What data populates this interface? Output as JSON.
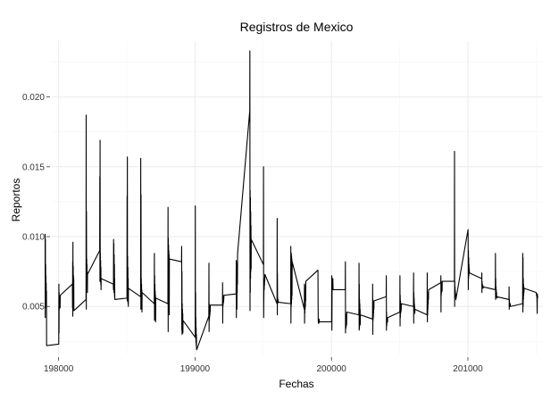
{
  "chart_data": {
    "type": "line",
    "title": "Registros de Mexico",
    "xlabel": "Fechas",
    "ylabel": "Reportos",
    "xlim": [
      197950,
      201550
    ],
    "ylim": [
      0.0015,
      0.024
    ],
    "x_ticks": [
      198000,
      199000,
      200000,
      201000
    ],
    "x_tick_labels": [
      "198000",
      "199000",
      "200000",
      "201000"
    ],
    "x_minor_ticks": [
      198500,
      199500,
      200500,
      201500
    ],
    "y_ticks": [
      0.005,
      0.01,
      0.015,
      0.02
    ],
    "y_tick_labels": [
      "0.005",
      "0.010",
      "0.015",
      "0.020"
    ],
    "y_minor_ticks": [
      0.0025,
      0.0075,
      0.0125,
      0.0175,
      0.0225
    ],
    "grid": true,
    "line_color": "#000000",
    "series": [
      {
        "x": [
          197901,
          197902,
          197903,
          197904,
          197905,
          197906,
          197907,
          197908,
          197909,
          197910,
          197911,
          197912,
          198001,
          198002,
          198003,
          198004,
          198005,
          198006,
          198007,
          198008,
          198009,
          198010,
          198011,
          198012,
          198101,
          198102,
          198103,
          198104,
          198105,
          198106,
          198107,
          198108,
          198109,
          198110,
          198111,
          198112,
          198201,
          198202,
          198203,
          198204,
          198205,
          198206,
          198207,
          198208,
          198209,
          198210,
          198211,
          198212,
          198301,
          198302,
          198303,
          198304,
          198305,
          198306,
          198307,
          198308,
          198309,
          198310,
          198311,
          198312,
          198401,
          198402,
          198403,
          198404,
          198405,
          198406,
          198407,
          198408,
          198409,
          198410,
          198411,
          198412,
          198501,
          198502,
          198503,
          198504,
          198505,
          198506,
          198507,
          198508,
          198509,
          198510,
          198511,
          198512,
          198601,
          198602,
          198603,
          198604,
          198605,
          198606,
          198607,
          198608,
          198609,
          198610,
          198611,
          198612,
          198701,
          198702,
          198703,
          198704,
          198705,
          198706,
          198707,
          198708,
          198709,
          198710,
          198711,
          198712,
          198801,
          198802,
          198803,
          198804,
          198805,
          198806,
          198807,
          198808,
          198809,
          198810,
          198811,
          198812,
          198901,
          198902,
          198903,
          198904,
          198905,
          198906,
          198907,
          198908,
          198909,
          198910,
          198911,
          198912,
          199001,
          199002,
          199003,
          199004,
          199005,
          199006,
          199007,
          199008,
          199009,
          199010,
          199011,
          199012,
          199101,
          199102,
          199103,
          199104,
          199105,
          199106,
          199107,
          199108,
          199109,
          199110,
          199111,
          199112,
          199201,
          199202,
          199203,
          199204,
          199205,
          199206,
          199207,
          199208,
          199209,
          199210,
          199211,
          199212,
          199301,
          199302,
          199303,
          199304,
          199305,
          199306,
          199307,
          199308,
          199309,
          199310,
          199311,
          199312,
          199401,
          199402,
          199403,
          199404,
          199405,
          199406,
          199407,
          199408,
          199409,
          199410,
          199411,
          199412,
          199501,
          199502,
          199503,
          199504,
          199505,
          199506,
          199507,
          199508,
          199509,
          199510,
          199511,
          199512,
          199601,
          199602,
          199603,
          199604,
          199605,
          199606,
          199607,
          199608,
          199609,
          199610,
          199611,
          199612,
          199701,
          199702,
          199703,
          199704,
          199705,
          199706,
          199707,
          199708,
          199709,
          199710,
          199711,
          199712,
          199801,
          199802,
          199803,
          199804,
          199805,
          199806,
          199807,
          199808,
          199809,
          199810,
          199811,
          199812,
          199901,
          199902,
          199903,
          199904,
          199905,
          199906,
          199907,
          199908,
          199909,
          199910,
          199911,
          199912,
          200001,
          200002,
          200003,
          200004,
          200005,
          200006,
          200007,
          200008,
          200009,
          200010,
          200011,
          200012,
          200101,
          200102,
          200103,
          200104,
          200105,
          200106,
          200107,
          200108,
          200109,
          200110,
          200111,
          200112,
          200201,
          200202,
          200203,
          200204,
          200205,
          200206,
          200207,
          200208,
          200209,
          200210,
          200211,
          200212,
          200301,
          200302,
          200303,
          200304,
          200305,
          200306,
          200307,
          200308,
          200309,
          200310,
          200311,
          200312,
          200401,
          200402,
          200403,
          200404,
          200405,
          200406,
          200407,
          200408,
          200409,
          200410,
          200411,
          200412,
          200501,
          200502,
          200503,
          200504,
          200505,
          200506,
          200507,
          200508,
          200509,
          200510,
          200511,
          200512,
          200601,
          200602,
          200603,
          200604,
          200605,
          200606,
          200607,
          200608,
          200609,
          200610,
          200611,
          200612,
          200701,
          200702,
          200703,
          200704,
          200705,
          200706,
          200707,
          200708,
          200709,
          200710,
          200711,
          200712,
          200801,
          200802,
          200803,
          200804,
          200805,
          200806,
          200807,
          200808,
          200809,
          200810,
          200811,
          200812,
          200901,
          200902,
          200903,
          200904,
          200905,
          200906,
          200907,
          200908,
          200909,
          200910,
          200911,
          200912,
          201001,
          201002,
          201003,
          201004,
          201005,
          201006,
          201007,
          201008,
          201009,
          201010,
          201011,
          201012,
          201101,
          201102,
          201103,
          201104,
          201105,
          201106,
          201107,
          201108,
          201109,
          201110,
          201111,
          201112,
          201201,
          201202,
          201203,
          201204,
          201205,
          201206,
          201207,
          201208,
          201209,
          201210,
          201211,
          201212,
          201301,
          201302,
          201303,
          201304,
          201305,
          201306,
          201307,
          201308,
          201309,
          201310,
          201311,
          201312,
          201401,
          201402,
          201403,
          201404,
          201405,
          201406,
          201407,
          201408,
          201409,
          201410,
          201411,
          201412,
          201501,
          201502,
          201503,
          201504,
          201505,
          201506,
          201507,
          201508,
          201509,
          201510,
          201511,
          201512
        ],
        "y": [
          0.0102,
          0.0042,
          0.0098,
          0.0055,
          0.008,
          0.006,
          0.0072,
          0.0052,
          0.0067,
          0.0049,
          0.0061,
          0.0022,
          0.0023,
          0.0066,
          0.0031,
          0.006,
          0.0048,
          0.0057,
          0.0052,
          0.0054,
          0.005,
          0.0053,
          0.0049,
          0.0058,
          0.0066,
          0.0049,
          0.0082,
          0.0043,
          0.0096,
          0.0052,
          0.0079,
          0.0058,
          0.0072,
          0.0054,
          0.007,
          0.0047,
          0.0055,
          0.0187,
          0.0048,
          0.0118,
          0.0076,
          0.0084,
          0.0072,
          0.008,
          0.0067,
          0.0075,
          0.006,
          0.0073,
          0.009,
          0.0143,
          0.0068,
          0.0169,
          0.0078,
          0.0088,
          0.0072,
          0.0083,
          0.0066,
          0.0078,
          0.0062,
          0.007,
          0.0066,
          0.0062,
          0.0098,
          0.0064,
          0.0095,
          0.006,
          0.0087,
          0.0061,
          0.008,
          0.0057,
          0.007,
          0.0055,
          0.0056,
          0.0129,
          0.0054,
          0.0157,
          0.006,
          0.0086,
          0.0055,
          0.0078,
          0.0052,
          0.007,
          0.005,
          0.0063,
          0.0057,
          0.0156,
          0.0048,
          0.013,
          0.0052,
          0.007,
          0.005,
          0.0066,
          0.0048,
          0.0062,
          0.0046,
          0.006,
          0.0052,
          0.0088,
          0.004,
          0.0072,
          0.0047,
          0.0066,
          0.0044,
          0.0061,
          0.0041,
          0.0058,
          0.0039,
          0.0056,
          0.0052,
          0.0121,
          0.0032,
          0.0099,
          0.0048,
          0.0094,
          0.0052,
          0.009,
          0.0046,
          0.0087,
          0.0044,
          0.0084,
          0.0082,
          0.0093,
          0.0033,
          0.0075,
          0.003,
          0.0052,
          0.0035,
          0.0048,
          0.0032,
          0.0045,
          0.0031,
          0.004,
          0.0028,
          0.0122,
          0.003,
          0.006,
          0.0027,
          0.0042,
          0.0024,
          0.0035,
          0.0022,
          0.003,
          0.002,
          0.0019,
          0.0043,
          0.0081,
          0.0032,
          0.0052,
          0.004,
          0.0046,
          0.0042,
          0.0048,
          0.0044,
          0.0049,
          0.0046,
          0.0051,
          0.0051,
          0.0067,
          0.0038,
          0.0058,
          0.005,
          0.0055,
          0.0052,
          0.0056,
          0.0053,
          0.0057,
          0.0055,
          0.0058,
          0.0059,
          0.0083,
          0.0042,
          0.0075,
          0.005,
          0.008,
          0.0048,
          0.0077,
          0.006,
          0.0082,
          0.0066,
          0.0088,
          0.019,
          0.0233,
          0.0047,
          0.0133,
          0.006,
          0.0128,
          0.007,
          0.0118,
          0.0075,
          0.0108,
          0.0077,
          0.0098,
          0.008,
          0.015,
          0.0042,
          0.0055,
          0.006,
          0.0065,
          0.0062,
          0.0068,
          0.0065,
          0.007,
          0.0068,
          0.0073,
          0.0052,
          0.0113,
          0.0044,
          0.0074,
          0.0052,
          0.0056,
          0.0053,
          0.0055,
          0.0054,
          0.0054,
          0.0053,
          0.0053,
          0.0052,
          0.0093,
          0.0038,
          0.006,
          0.005,
          0.0088,
          0.0052,
          0.0086,
          0.0055,
          0.0084,
          0.0058,
          0.0082,
          0.0048,
          0.0066,
          0.0038,
          0.0052,
          0.0045,
          0.006,
          0.0048,
          0.0062,
          0.005,
          0.0065,
          0.0054,
          0.0068,
          0.0076,
          0.0052,
          0.004,
          0.0038,
          0.0041,
          0.0039,
          0.004,
          0.0038,
          0.0041,
          0.0039,
          0.004,
          0.0039,
          0.0039,
          0.0072,
          0.0033,
          0.005,
          0.0066,
          0.007,
          0.0064,
          0.0068,
          0.0066,
          0.007,
          0.0065,
          0.0062,
          0.0062,
          0.0082,
          0.0031,
          0.0045,
          0.0034,
          0.004,
          0.0035,
          0.0042,
          0.0036,
          0.0044,
          0.0037,
          0.0046,
          0.0044,
          0.0081,
          0.0033,
          0.0066,
          0.0034,
          0.0055,
          0.0036,
          0.0052,
          0.0038,
          0.0048,
          0.0037,
          0.0044,
          0.0041,
          0.0066,
          0.003,
          0.0055,
          0.004,
          0.005,
          0.0042,
          0.0048,
          0.0045,
          0.0052,
          0.0048,
          0.0054,
          0.0057,
          0.0072,
          0.0033,
          0.0046,
          0.0036,
          0.0042,
          0.0038,
          0.0041,
          0.004,
          0.004,
          0.0039,
          0.0042,
          0.0046,
          0.0072,
          0.0036,
          0.0058,
          0.0042,
          0.0054,
          0.0045,
          0.0052,
          0.0046,
          0.005,
          0.0047,
          0.0052,
          0.005,
          0.0074,
          0.0038,
          0.006,
          0.0048,
          0.0056,
          0.0049,
          0.0052,
          0.0047,
          0.005,
          0.0045,
          0.0048,
          0.0044,
          0.0074,
          0.0039,
          0.0055,
          0.0044,
          0.0056,
          0.0048,
          0.0058,
          0.0052,
          0.006,
          0.0055,
          0.0062,
          0.0067,
          0.0072,
          0.0046,
          0.0068,
          0.0058,
          0.0065,
          0.006,
          0.0063,
          0.0062,
          0.0062,
          0.0061,
          0.0068,
          0.0068,
          0.0161,
          0.005,
          0.0068,
          0.006,
          0.0064,
          0.0058,
          0.0061,
          0.0057,
          0.0059,
          0.0056,
          0.0055,
          0.0105,
          0.0093,
          0.0062,
          0.009,
          0.007,
          0.0085,
          0.0072,
          0.008,
          0.0074,
          0.0077,
          0.0075,
          0.0074,
          0.007,
          0.0074,
          0.006,
          0.0068,
          0.0064,
          0.0066,
          0.0065,
          0.0065,
          0.0064,
          0.0065,
          0.0063,
          0.0064,
          0.0062,
          0.0088,
          0.0055,
          0.007,
          0.0058,
          0.0064,
          0.0058,
          0.0062,
          0.0057,
          0.006,
          0.0056,
          0.0057,
          0.0055,
          0.0064,
          0.0048,
          0.0055,
          0.005,
          0.0053,
          0.005,
          0.0052,
          0.0051,
          0.0052,
          0.0051,
          0.005,
          0.0052,
          0.0088,
          0.0046,
          0.0085,
          0.005,
          0.007,
          0.0055,
          0.0066,
          0.0058,
          0.0064,
          0.006,
          0.0063,
          0.006,
          0.0059,
          0.0058,
          0.0058,
          0.0057,
          0.0057,
          0.0052,
          0.0045,
          0.0059,
          0.0058,
          0.0057,
          0.0056
        ]
      }
    ]
  }
}
